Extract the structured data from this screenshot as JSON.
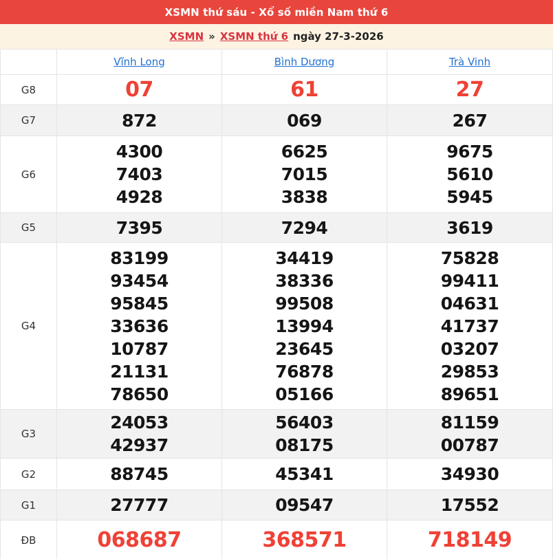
{
  "header": {
    "title": "XSMN thứ sáu - Xổ số miền Nam thứ 6"
  },
  "breadcrumb": {
    "links": [
      "XSMN",
      "XSMN thứ 6"
    ],
    "separator": "»",
    "date_text": "ngày 27-3-2026"
  },
  "columns": [
    "Vĩnh Long",
    "Bình Dương",
    "Trà Vinh"
  ],
  "prizes": [
    {
      "label": "G8",
      "highlight": true,
      "values": [
        [
          "07"
        ],
        [
          "61"
        ],
        [
          "27"
        ]
      ]
    },
    {
      "label": "G7",
      "highlight": false,
      "values": [
        [
          "872"
        ],
        [
          "069"
        ],
        [
          "267"
        ]
      ]
    },
    {
      "label": "G6",
      "highlight": false,
      "values": [
        [
          "4300",
          "7403",
          "4928"
        ],
        [
          "6625",
          "7015",
          "3838"
        ],
        [
          "9675",
          "5610",
          "5945"
        ]
      ]
    },
    {
      "label": "G5",
      "highlight": false,
      "values": [
        [
          "7395"
        ],
        [
          "7294"
        ],
        [
          "3619"
        ]
      ]
    },
    {
      "label": "G4",
      "highlight": false,
      "values": [
        [
          "83199",
          "93454",
          "95845",
          "33636",
          "10787",
          "21131",
          "78650"
        ],
        [
          "34419",
          "38336",
          "99508",
          "13994",
          "23645",
          "76878",
          "05166"
        ],
        [
          "75828",
          "99411",
          "04631",
          "41737",
          "03207",
          "29853",
          "89651"
        ]
      ]
    },
    {
      "label": "G3",
      "highlight": false,
      "values": [
        [
          "24053",
          "42937"
        ],
        [
          "56403",
          "08175"
        ],
        [
          "81159",
          "00787"
        ]
      ]
    },
    {
      "label": "G2",
      "highlight": false,
      "values": [
        [
          "88745"
        ],
        [
          "45341"
        ],
        [
          "34930"
        ]
      ]
    },
    {
      "label": "G1",
      "highlight": false,
      "values": [
        [
          "27777"
        ],
        [
          "09547"
        ],
        [
          "17552"
        ]
      ]
    },
    {
      "label": "ĐB",
      "highlight": true,
      "values": [
        [
          "068687"
        ],
        [
          "368571"
        ],
        [
          "718149"
        ]
      ]
    }
  ],
  "colors": {
    "title_bar_bg": "#e8453c",
    "breadcrumb_bg": "#fdf3e3",
    "breadcrumb_link": "#d93340",
    "province_link": "#2271d3",
    "highlight_number": "#ef4136",
    "number": "#151515",
    "shaded_row_bg": "#f2f2f2",
    "border": "#e4e4e4"
  }
}
